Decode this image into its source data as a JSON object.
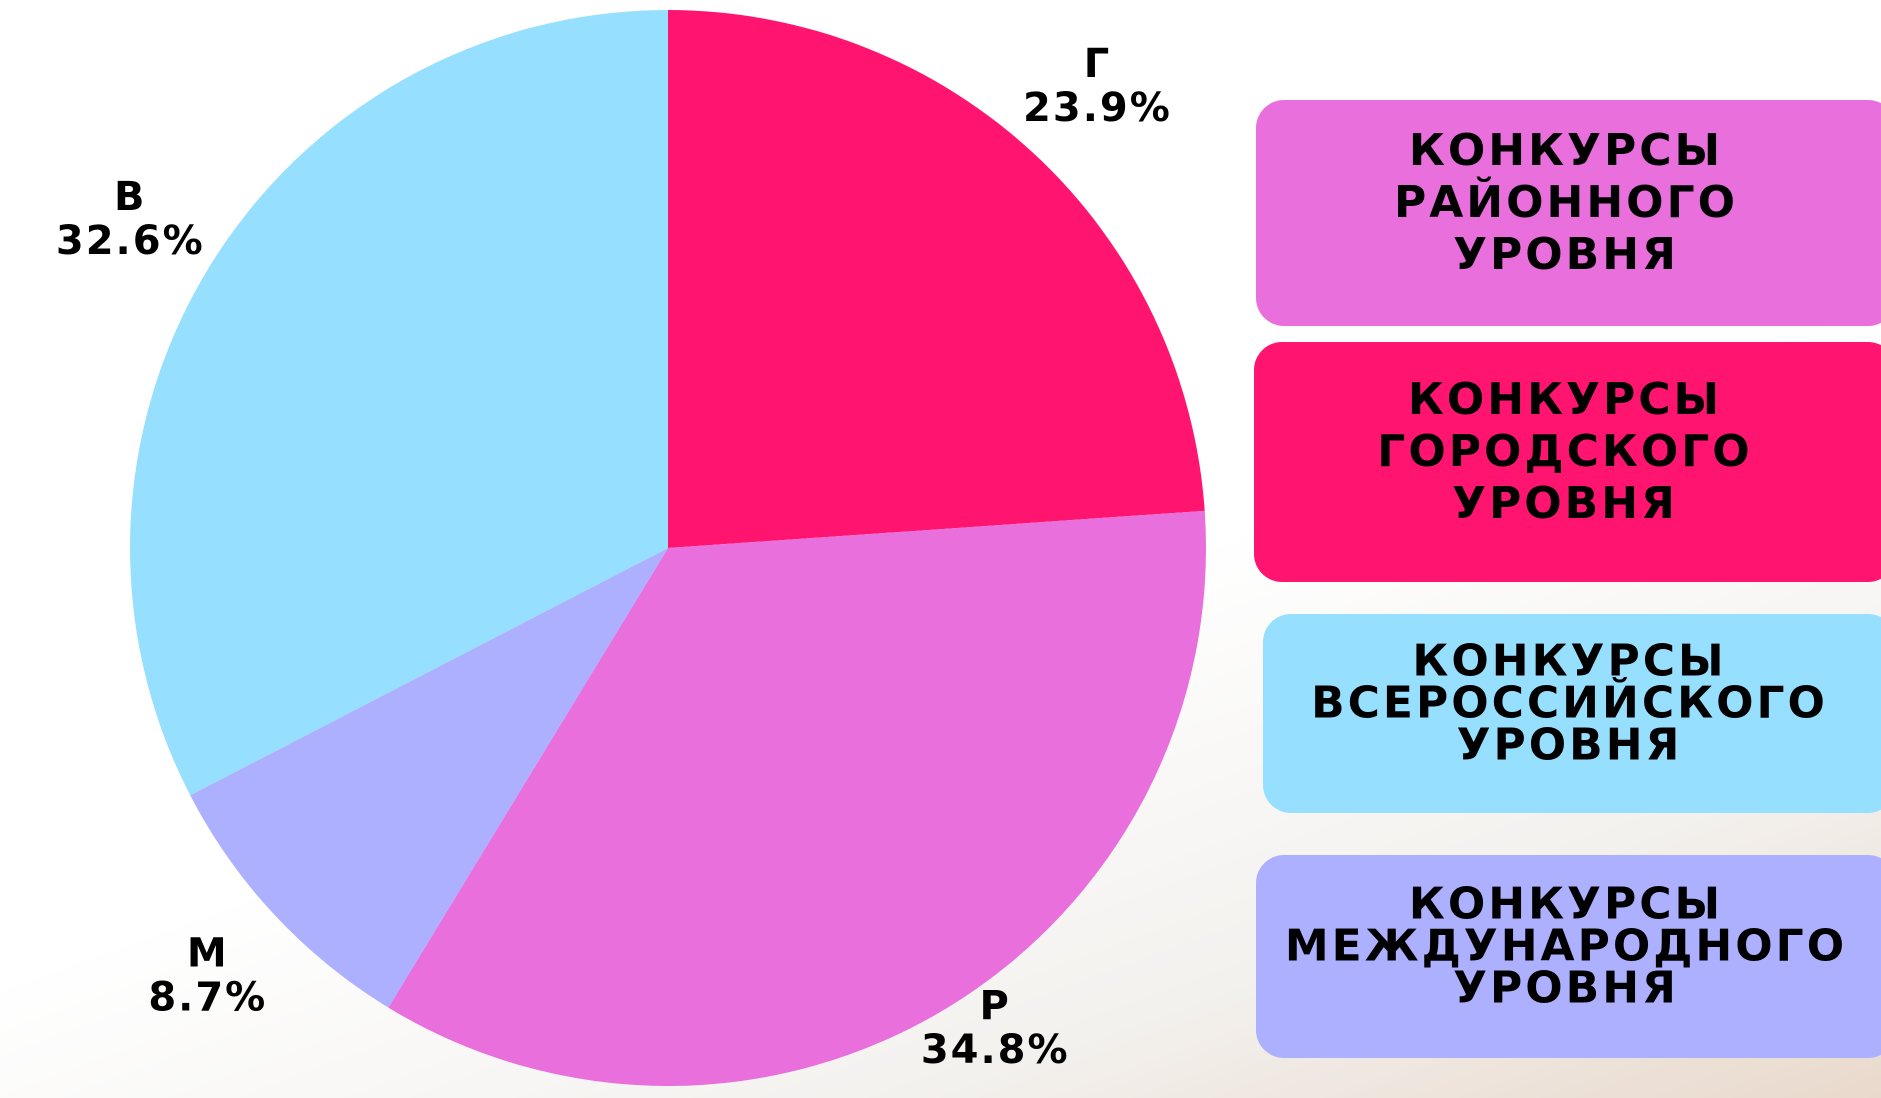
{
  "chart_data": {
    "type": "pie",
    "categories": [
      "Г",
      "Р",
      "М",
      "В"
    ],
    "values": [
      23.9,
      34.8,
      8.7,
      32.6
    ],
    "value_labels": [
      "23.9%",
      "34.8%",
      "8.7%",
      "32.6%"
    ],
    "colors": [
      "#ff1470",
      "#e86fdc",
      "#adb0ff",
      "#97dfff"
    ],
    "legend": [
      {
        "lines": [
          "КОНКУРСЫ",
          "РАЙОННОГО",
          "УРОВНЯ"
        ],
        "color": "#e86fdc"
      },
      {
        "lines": [
          "КОНКУРСЫ",
          "ГОРОДСКОГО",
          "УРОВНЯ"
        ],
        "color": "#ff1470"
      },
      {
        "lines": [
          "КОНКУРСЫ",
          "ВСЕРОССИЙСКОГО",
          "УРОВНЯ"
        ],
        "color": "#97dfff"
      },
      {
        "lines": [
          "КОНКУРСЫ",
          "МЕЖДУНАРОДНОГО",
          "УРОВНЯ"
        ],
        "color": "#adb0ff"
      }
    ]
  }
}
